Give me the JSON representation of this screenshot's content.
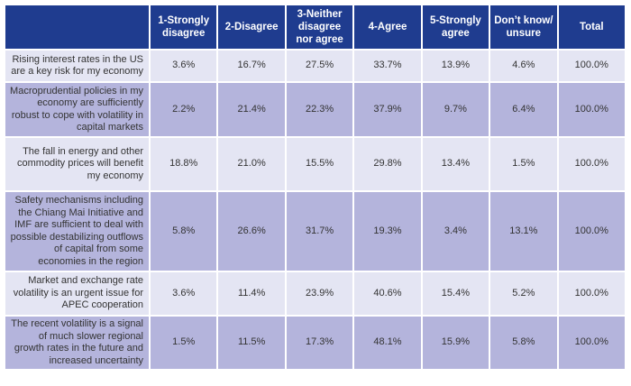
{
  "table": {
    "headers": [
      "",
      "1-Strongly disagree",
      "2-Disagree",
      "3-Neither disagree nor agree",
      "4-Agree",
      "5-Strongly agree",
      "Don’t know/ unsure",
      "Total"
    ],
    "rows": [
      {
        "statement": "Rising interest rates in the US are a key risk for my economy",
        "values": [
          "3.6%",
          "16.7%",
          "27.5%",
          "33.7%",
          "13.9%",
          "4.6%",
          "100.0%"
        ]
      },
      {
        "statement": "Macroprudential policies in my economy are sufficiently robust to cope with volatility in capital markets",
        "values": [
          "2.2%",
          "21.4%",
          "22.3%",
          "37.9%",
          "9.7%",
          "6.4%",
          "100.0%"
        ]
      },
      {
        "statement": "The fall in energy and other commodity prices  will benefit my economy",
        "values": [
          "18.8%",
          "21.0%",
          "15.5%",
          "29.8%",
          "13.4%",
          "1.5%",
          "100.0%"
        ]
      },
      {
        "statement": "Safety mechanisms including the Chiang Mai Initiative and IMF are sufficient to deal with possible destabilizing outflows of capital from some economies in the region",
        "values": [
          "5.8%",
          "26.6%",
          "31.7%",
          "19.3%",
          "3.4%",
          "13.1%",
          "100.0%"
        ]
      },
      {
        "statement": "Market and exchange rate volatility is an urgent issue for APEC cooperation",
        "values": [
          "3.6%",
          "11.4%",
          "23.9%",
          "40.6%",
          "15.4%",
          "5.2%",
          "100.0%"
        ]
      },
      {
        "statement": "The recent volatility is a signal of much slower regional growth rates in the future and increased uncertainty",
        "values": [
          "1.5%",
          "11.5%",
          "17.3%",
          "48.1%",
          "15.9%",
          "5.8%",
          "100.0%"
        ]
      }
    ]
  },
  "colors": {
    "header_bg": "#1f3c8f",
    "row_light": "#e4e5f3",
    "row_dark": "#b4b4dc",
    "text": "#333333"
  }
}
